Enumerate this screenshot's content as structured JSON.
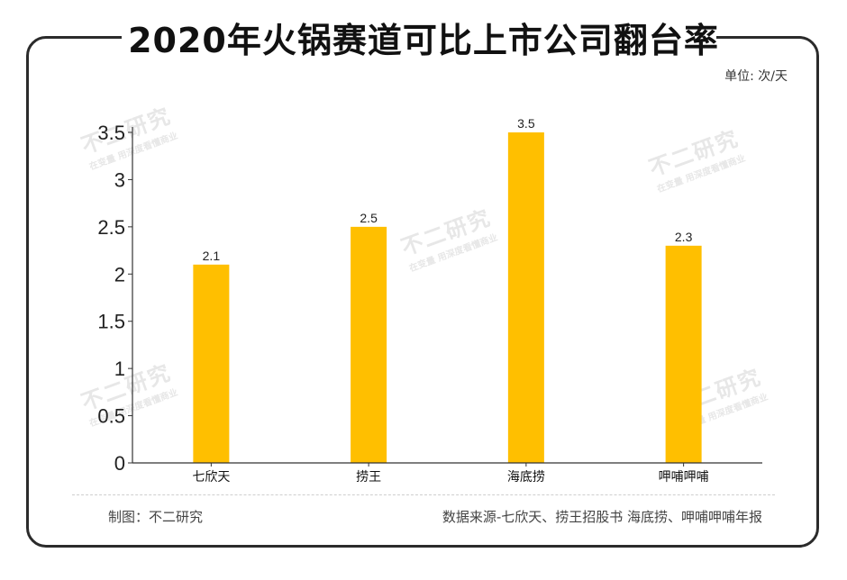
{
  "title": "2020年火锅赛道可比上市公司翻台率",
  "unit_label": "单位: 次/天",
  "footer": {
    "left": "制图：不二研究",
    "right": "数据来源-七欣天、捞王招股书 海底捞、呷哺呷哺年报"
  },
  "watermark": {
    "main": "不二研究",
    "sub": "在变量 用深度看懂商业"
  },
  "colors": {
    "bar": "#ffbf00",
    "axis": "#333333"
  },
  "chart_data": {
    "type": "bar",
    "categories": [
      "七欣天",
      "捞王",
      "海底捞",
      "呷哺呷哺"
    ],
    "values": [
      2.1,
      2.5,
      3.5,
      2.3
    ],
    "value_labels": [
      "2.1",
      "2.5",
      "3.5",
      "2.3"
    ],
    "y_ticks": [
      0,
      0.5,
      1,
      1.5,
      2,
      2.5,
      3,
      3.5
    ],
    "y_tick_labels": [
      "0",
      "0.5",
      "1",
      "1.5",
      "2",
      "2.5",
      "3",
      "3.5"
    ],
    "ylim": [
      0,
      3.5
    ],
    "grid": false,
    "legend": "none"
  }
}
